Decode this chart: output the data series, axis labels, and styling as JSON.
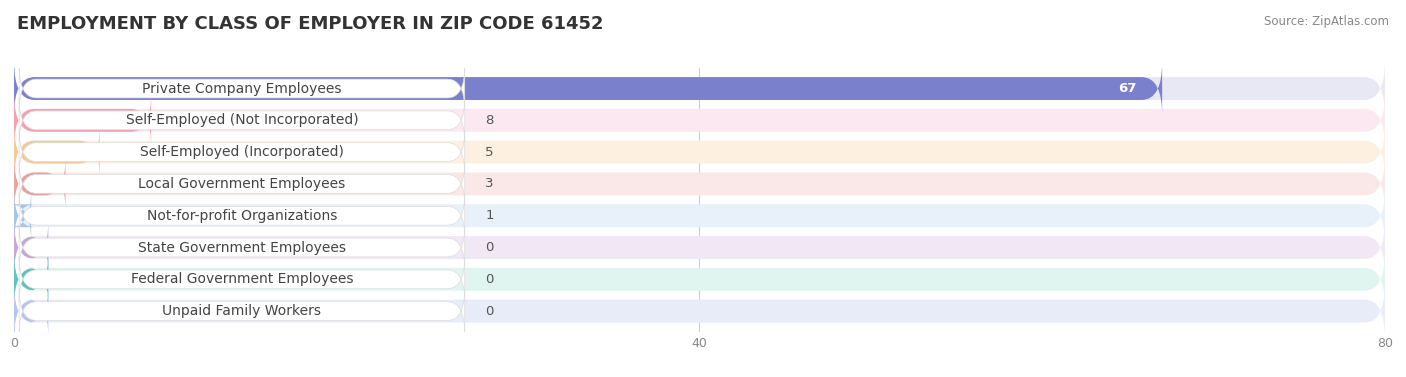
{
  "title": "EMPLOYMENT BY CLASS OF EMPLOYER IN ZIP CODE 61452",
  "source": "Source: ZipAtlas.com",
  "categories": [
    "Private Company Employees",
    "Self-Employed (Not Incorporated)",
    "Self-Employed (Incorporated)",
    "Local Government Employees",
    "Not-for-profit Organizations",
    "State Government Employees",
    "Federal Government Employees",
    "Unpaid Family Workers"
  ],
  "values": [
    67,
    8,
    5,
    3,
    1,
    0,
    0,
    0
  ],
  "bar_colors": [
    "#7b80cc",
    "#f4a0b0",
    "#f5c89a",
    "#e8a0a0",
    "#a8c4e8",
    "#c4a8d8",
    "#5dc4ba",
    "#b8c4f0"
  ],
  "bar_bg_colors": [
    "#e8e8f5",
    "#fce8f0",
    "#fdf0e0",
    "#fae8e8",
    "#e8f0fa",
    "#f0e8f5",
    "#e0f5f0",
    "#e8ecf8"
  ],
  "label_bg_color": "#ffffff",
  "xlim": [
    0,
    80
  ],
  "xticks": [
    0,
    40,
    80
  ],
  "title_fontsize": 13,
  "label_fontsize": 10,
  "value_fontsize": 9.5,
  "background_color": "#ffffff",
  "bar_height": 0.72,
  "value_inside_threshold": 20
}
